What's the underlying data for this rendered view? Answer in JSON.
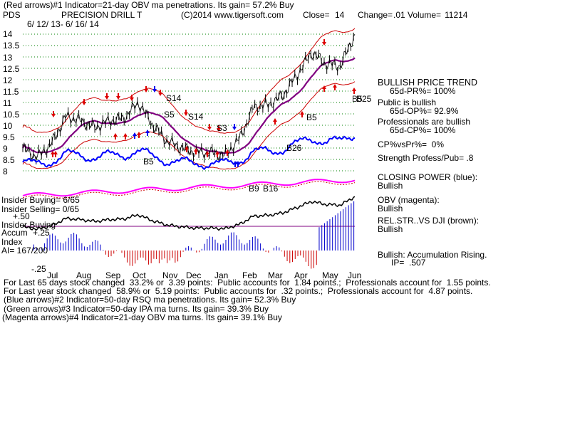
{
  "header": {
    "line1": "(Red arrows)#1 Indicator=21-day OBV ma penetrations. Its gain= 57.2% Buy",
    "ticker": "PDS",
    "name": "PRECISION DRILL T",
    "copyright": "(C)2014 www.tigersoft.com",
    "close_label": "Close=",
    "close_value": "14",
    "change_label": "Change=",
    "change_value": ".01",
    "volume_label": "Volume=",
    "volume_value": "11214",
    "date_range": "6/ 12/ 13- 6/ 16/ 14"
  },
  "left_labels": {
    "insider_buying": "Insider Buying= 6/65",
    "insider_selling": "Insider Selling= 0/65",
    "plus50": "+.50",
    "insider_buying2": "Insider Buying",
    "accum": "Accum",
    "plus25": "+.25",
    "index": "Index",
    "ai": "AI= 167/200",
    "minus25": "-.25"
  },
  "chart_labels": {
    "s14a": "S14",
    "s5": "S5",
    "s14b": "S14",
    "s3": "S3",
    "b5a": "B5",
    "b26": "B26",
    "b5b": "B5",
    "b9": "B9",
    "b16": "B16",
    "b25": "B25",
    "b5c": "B5"
  },
  "right_panel": {
    "trend_title": "BULLISH PRICE TREND",
    "pr": "65d-PR%= 100%",
    "public_title": "Public is bullish",
    "op": "65d-OP%= 92.9%",
    "pros_title": "Professionals are bullish",
    "cp": "65d-CP%= 100%",
    "cpvspr": "CP%vsPr%=  0%",
    "strength": "Strength Profess/Pub= .8",
    "closing_power": "CLOSING POWER (blue):",
    "cp_status": "Bullish",
    "obv": "OBV (magenta):",
    "obv_status": "Bullish",
    "relstr": "REL.STR..VS DJI (brown):",
    "relstr_status": "Bullish",
    "accum": "Bullish: Accumulation Rising.",
    "ip": "IP=  .507"
  },
  "footer": {
    "line1": "For Last 65 days stock changed  33.2% or  3.39 points:  Public accounts for  1.84 points.;  Professionals account for  1.55 points.",
    "line2": "For Last year stock changed  58.9% or  5.19 points:  Public accounts for  .32 points.;  Professionals account for  4.87 points.",
    "line3": "(Blue arrows)#2 Indicator=50-day RSQ ma penetrations. Its gain= 52.3% Buy",
    "line4": "(Green arrows)#3 Indicator=50-day IPA ma turns. Its gain= 39.3% Buy",
    "line5": "(Magenta arrows)#4 Indicator=21-day OBV ma turns. Its gain= 39.1% Buy"
  },
  "colors": {
    "price": "#000000",
    "band": "#cc0000",
    "ma": "#800080",
    "closing_power": "#0000ff",
    "obv": "#ff00ff",
    "accum_pos": "#0000cc",
    "accum_neg": "#cc0000",
    "grid": "#008000"
  },
  "chart_data": {
    "type": "line",
    "title": "PRECISION DRILL T",
    "y_ticks": [
      "14",
      "13.5",
      "13",
      "12.5",
      "12",
      "11.5",
      "11",
      "10.5",
      "10",
      "9.5",
      "9",
      "8.5",
      "8"
    ],
    "ylim": [
      8,
      14
    ],
    "month_ticks": [
      "Jul",
      "Aug",
      "Sep",
      "Oct",
      "Nov",
      "Dec",
      "Jan",
      "Feb",
      "Mar",
      "Apr",
      "May",
      "Jun"
    ],
    "series": [
      {
        "name": "",
        "x": [
          "Jun",
          "Jul",
          "Jul",
          "Aug",
          "Aug",
          "Sep",
          "Sep",
          "Oct",
          "Oct",
          "Nov",
          "Nov",
          "Dec",
          "Dec",
          "Jan",
          "Jan",
          "Feb",
          "Feb",
          "Mar",
          "Mar",
          "Apr",
          "Apr",
          "May",
          "May",
          "Jun"
        ],
        "values": [
          9.0,
          8.6,
          9.2,
          10.4,
          10.2,
          9.9,
          10.2,
          10.3,
          11.0,
          10.0,
          9.3,
          9.0,
          8.8,
          8.8,
          8.7,
          9.4,
          10.8,
          10.9,
          11.3,
          12.2,
          13.2,
          12.7,
          12.6,
          14.0
        ]
      }
    ],
    "grid": true
  }
}
